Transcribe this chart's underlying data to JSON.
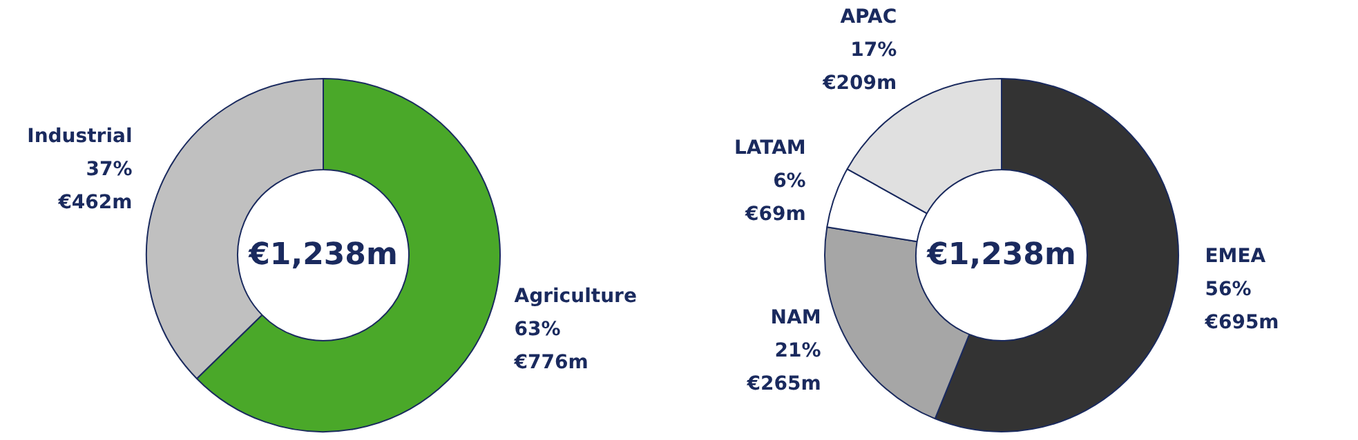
{
  "chart_data": [
    {
      "type": "donut",
      "categories": [
        "Agriculture",
        "Industrial"
      ],
      "values": [
        776,
        462
      ],
      "colors": [
        "#4aa829",
        "#c0c0c0"
      ],
      "value_labels": [
        "€776m",
        "€462m"
      ],
      "annotations": [
        "€1,238m",
        {
          "text": "63%",
          "x": "Agriculture"
        },
        {
          "text": "37%",
          "x": "Industrial"
        }
      ],
      "legend": false
    },
    {
      "type": "donut",
      "categories": [
        "EMEA",
        "NAM",
        "LATAM",
        "APAC"
      ],
      "values": [
        695,
        265,
        69,
        209
      ],
      "colors": [
        "#333333",
        "#a6a6a6",
        "#ffffff",
        "#e0e0e0"
      ],
      "value_labels": [
        "€695m",
        "€265m",
        "€69m",
        "€209m"
      ],
      "annotations": [
        "€1,238m",
        {
          "text": "56%",
          "x": "EMEA"
        },
        {
          "text": "21%",
          "x": "NAM"
        },
        {
          "text": "6%",
          "x": "LATAM"
        },
        {
          "text": "17%",
          "x": "APAC"
        }
      ],
      "legend": false
    }
  ]
}
